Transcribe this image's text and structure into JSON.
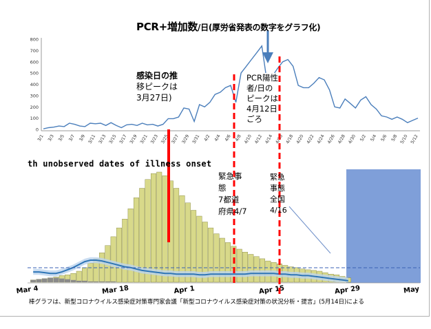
{
  "title": {
    "main": "PCR+増加数",
    "sub": "/日(厚労省発表の数字をグラフ化)"
  },
  "top_chart_notes": {
    "left_peak_note": [
      "感染日の推",
      "移ピークは",
      "3月27日)"
    ],
    "right_peak_note": [
      "PCR陽性",
      "者/日の",
      "ピークは",
      "4月12日",
      "ごろ"
    ]
  },
  "bottom_chart_notes": {
    "emergency_7pref": [
      "緊急事",
      "態",
      "7都道",
      "府県4/7"
    ],
    "emergency_nationwide": [
      "緊急",
      "事態",
      "全国",
      "4/16"
    ],
    "cropped_title": "th unobserved dates of illness onset"
  },
  "caption": "棒グラフは、新型コロナウイルス感染症対策専門家会議「新型コロナウイルス感染症対策の状況分析・提言」(5月14日)による",
  "colors": {
    "line": "#4a7ebb",
    "bars": "#d8d98a",
    "bar_edge": "#7c7d36",
    "grey_bars": "#8a8a8a",
    "red": "#ff0000",
    "band": "#7f9fd9",
    "arrow": "#4a7ebb"
  },
  "chart_data": [
    {
      "type": "line",
      "title": "PCR+増加数/日(厚労省発表の数字をグラフ化)",
      "ylim": [
        0,
        800
      ],
      "yticks": [
        0,
        100,
        200,
        300,
        400,
        500,
        600,
        700,
        800
      ],
      "x": [
        "3/1",
        "3/2",
        "3/3",
        "3/4",
        "3/5",
        "3/6",
        "3/7",
        "3/8",
        "3/9",
        "3/10",
        "3/11",
        "3/12",
        "3/13",
        "3/14",
        "3/15",
        "3/16",
        "3/17",
        "3/18",
        "3/19",
        "3/20",
        "3/21",
        "3/22",
        "3/23",
        "3/24",
        "3/25",
        "3/26",
        "3/27",
        "3/28",
        "3/29",
        "3/30",
        "3/31",
        "4/1",
        "4/2",
        "4/3",
        "4/4",
        "4/5",
        "4/6",
        "4/7",
        "4/8",
        "4/9",
        "4/10",
        "4/11",
        "4/12",
        "4/13",
        "4/14",
        "4/15",
        "4/16",
        "4/17",
        "4/18",
        "4/19",
        "4/20",
        "4/21",
        "4/22",
        "4/23",
        "4/24",
        "4/25",
        "4/26",
        "4/27",
        "4/28",
        "4/29",
        "4/30",
        "5/1",
        "5/2",
        "5/3",
        "5/4",
        "5/5",
        "5/6",
        "5/7",
        "5/8",
        "5/9",
        "5/10",
        "5/11",
        "5/12"
      ],
      "xtick_labels": [
        "3/1",
        "3/3",
        "3/5",
        "3/7",
        "3/9",
        "3/11",
        "3/13",
        "3/15",
        "3/17",
        "3/19",
        "3/21",
        "3/23",
        "3/25",
        "3/27",
        "3/29",
        "3/31",
        "4/2",
        "4/4",
        "4/6",
        "4/8",
        "4/10",
        "4/12",
        "4/14",
        "4/16",
        "4/18",
        "4/20",
        "4/22",
        "4/24",
        "4/26",
        "4/28",
        "4/30",
        "5/2",
        "5/4",
        "5/6",
        "5/8",
        "5/10",
        "5/12"
      ],
      "series": [
        {
          "values": [
            5,
            15,
            20,
            30,
            25,
            55,
            45,
            30,
            25,
            55,
            50,
            55,
            35,
            60,
            35,
            15,
            40,
            45,
            35,
            55,
            40,
            45,
            30,
            45,
            95,
            95,
            110,
            190,
            180,
            70,
            220,
            200,
            240,
            310,
            330,
            370,
            390,
            240,
            500,
            560,
            620,
            680,
            740,
            420,
            470,
            540,
            600,
            620,
            560,
            390,
            370,
            370,
            410,
            460,
            440,
            350,
            200,
            190,
            270,
            230,
            190,
            260,
            290,
            220,
            180,
            120,
            110,
            90,
            110,
            90,
            60,
            80,
            100
          ]
        }
      ]
    },
    {
      "type": "bar",
      "title": "th unobserved dates of illness onset",
      "x_tick_labels": [
        "Mar 4",
        "Mar 18",
        "Apr 1",
        "Apr 15",
        "Apr 29",
        "May"
      ],
      "categories_start": "Mar 4",
      "values": [
        3,
        4,
        5,
        6,
        7,
        9,
        10,
        12,
        15,
        20,
        26,
        32,
        40,
        50,
        62,
        74,
        86,
        100,
        115,
        128,
        140,
        148,
        150,
        145,
        138,
        128,
        118,
        108,
        98,
        90,
        82,
        74,
        66,
        60,
        54,
        49,
        45,
        41,
        38,
        35,
        32,
        29,
        27,
        25,
        23,
        21,
        20,
        18,
        17,
        16,
        15,
        13,
        11,
        10,
        8,
        6
      ],
      "grey_values": [
        3,
        4,
        5,
        6,
        6,
        5,
        4,
        3,
        2,
        2,
        1,
        1,
        1,
        1,
        1,
        0,
        0,
        0,
        0,
        0,
        0,
        0,
        0,
        0,
        0,
        0,
        0,
        0,
        0,
        0,
        0,
        0,
        0,
        0,
        0,
        0,
        0,
        0,
        0,
        0,
        0,
        0,
        0,
        0,
        0,
        0,
        0,
        0,
        0,
        0,
        0,
        0,
        0,
        0,
        0,
        0
      ],
      "curve": [
        14,
        14,
        13,
        12,
        12,
        14,
        17,
        20,
        24,
        28,
        30,
        30,
        29,
        27,
        25,
        23,
        21,
        20,
        18,
        16,
        15,
        14,
        13,
        12,
        12,
        11,
        11,
        11,
        11,
        10,
        10,
        11,
        11,
        11,
        11,
        11,
        11,
        11,
        12,
        12,
        12,
        12,
        12,
        11,
        11,
        10,
        10,
        9,
        9,
        8,
        7,
        6,
        5,
        4,
        3,
        2
      ]
    }
  ]
}
